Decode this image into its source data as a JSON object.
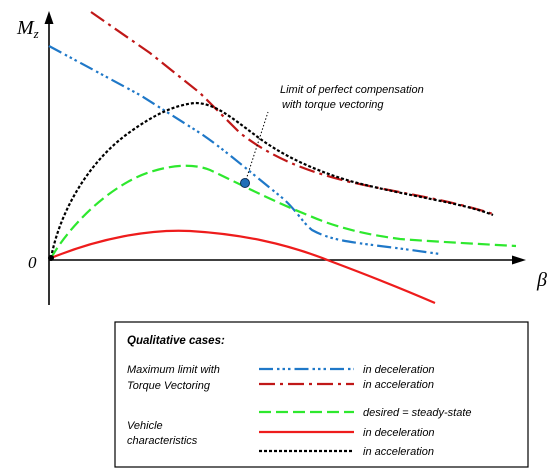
{
  "axes": {
    "y_label_main": "M",
    "y_label_sub": "z",
    "x_label": "β",
    "origin_label": "0"
  },
  "annotation": {
    "line1": "Limit of perfect compensation",
    "line2": "with torque vectoring"
  },
  "legend": {
    "heading": "Qualitative cases:",
    "group1_line1": "Maximum limit with",
    "group1_line2": "Torque Vectoring",
    "group2_line1": "Vehicle",
    "group2_line2": "characteristics",
    "entries": {
      "tv_decel": "in deceleration",
      "tv_accel": "in acceleration",
      "desired": "desired = steady-state",
      "veh_decel": "in deceleration",
      "veh_accel": "in acceleration"
    }
  },
  "colors": {
    "blue": "#1f78c8",
    "darkred": "#c01818",
    "green": "#2ee82e",
    "red": "#ee1c1c",
    "black": "#000000",
    "marker_fill": "#1f6fb8"
  }
}
